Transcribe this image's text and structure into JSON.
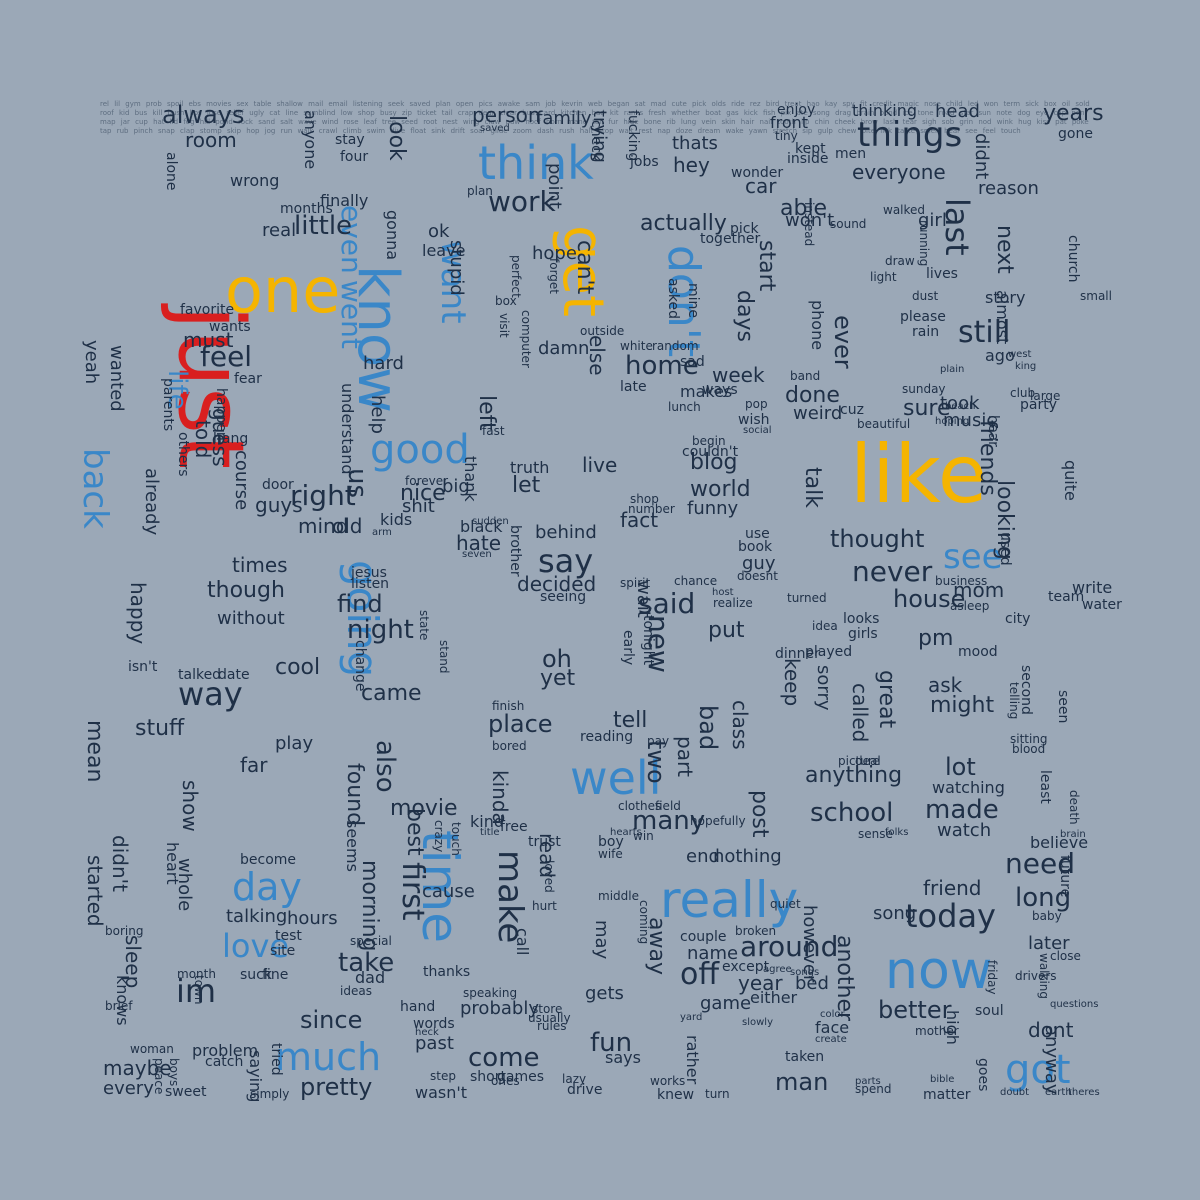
{
  "colors": {
    "background": "#9ba8b7",
    "dark": "#1f3047",
    "blue": "#3a87c8",
    "gold": "#f5b400",
    "red": "#d91f1f"
  },
  "words": {
    "like": "like",
    "just": "just",
    "one": "one",
    "know": "know",
    "get": "get",
    "think": "think",
    "dont": "don't",
    "time": "time",
    "really": "really",
    "well": "well",
    "now": "now",
    "got": "got",
    "good": "good",
    "going": "going",
    "see": "see",
    "back": "back",
    "day": "day",
    "much": "much",
    "love": "love",
    "want": "want",
    "even": "even",
    "went": "went",
    "life": "life",
    "things": "things",
    "still": "still",
    "last": "last",
    "today": "today",
    "never": "never",
    "say": "say",
    "said": "said",
    "new": "new",
    "way": "way",
    "make": "make",
    "first": "first",
    "right": "right",
    "feel": "feel",
    "little": "little",
    "work": "work",
    "home": "home",
    "thought": "thought",
    "friends": "friends",
    "looking": "looking",
    "talk": "talk",
    "also": "also",
    "around": "around",
    "off": "off",
    "need": "need",
    "long": "long",
    "better": "better",
    "school": "school",
    "anything": "anything",
    "made": "made",
    "many": "many",
    "two": "two",
    "part": "part",
    "tell": "tell",
    "place": "place",
    "kinda": "kinda",
    "take": "take",
    "since": "since",
    "pretty": "pretty",
    "come": "come",
    "fun": "fun",
    "man": "man",
    "years": "years",
    "always": "always",
    "room": "room",
    "look": "look",
    "person": "person",
    "family": "family",
    "actually": "actually",
    "everyone": "everyone",
    "next": "next",
    "ever": "ever",
    "sure": "sure",
    "house": "house",
    "night": "night",
    "find": "find",
    "came": "came",
    "movie": "movie",
    "found": "found",
    "morning": "morning",
    "best": "best",
    "hours": "hours",
    "talking": "talking",
    "im": "im",
    "maybe": "maybe",
    "every": "every",
    "problem": "problem",
    "without": "without",
    "though": "though",
    "times": "times",
    "cool": "cool",
    "stuff": "stuff",
    "mean": "mean",
    "happy": "happy",
    "already": "already",
    "yeah": "yeah",
    "wanted": "wanted",
    "must": "must",
    "guess": "guess",
    "course": "course",
    "told": "told",
    "guys": "guys",
    "mind": "mind",
    "old": "old",
    "us": "us",
    "nice": "nice",
    "hate": "hate",
    "left": "left",
    "let": "let",
    "live": "live",
    "blog": "blog",
    "world": "world",
    "funny": "funny",
    "fact": "fact",
    "behind": "behind",
    "decided": "decided",
    "oh": "oh",
    "yet": "yet",
    "week": "week",
    "start": "start",
    "days": "days",
    "done": "done",
    "weird": "weird",
    "great": "great",
    "ask": "ask",
    "might": "might",
    "called": "called",
    "bad": "bad",
    "class": "class",
    "lot": "lot",
    "post": "post",
    "watching": "watching",
    "watch": "watch",
    "friend": "friend",
    "song": "song",
    "another": "another",
    "however": "however",
    "name": "name",
    "year": "year",
    "away": "away",
    "wait": "wait",
    "put": "put",
    "keep": "keep",
    "sorry": "sorry",
    "pm": "pm",
    "mom": "mom",
    "music": "music",
    "took": "took",
    "reason": "reason",
    "didnt": "didnt",
    "car": "car",
    "able": "able",
    "wont": "won't",
    "inside": "inside",
    "hey": "hey",
    "thats": "thats",
    "cant": "can't",
    "else": "else",
    "damn": "damn",
    "trying": "trying",
    "point": "point",
    "hope": "hope",
    "stupid": "stupid",
    "play": "play",
    "far": "far",
    "show": "show",
    "sleep": "sleep",
    "started": "started",
    "didnt2": "didn't",
    "heart": "heart",
    "whole": "whole",
    "date": "date",
    "leave": "leave",
    "ok": "ok",
    "gonna": "gonna",
    "finally": "finally",
    "months": "months",
    "wrong": "wrong",
    "alone": "alone",
    "four": "four",
    "stay": "stay",
    "anyone": "anyone",
    "real": "real",
    "understand": "understand",
    "help": "help",
    "hard": "hard",
    "shit": "shit",
    "kids": "kids",
    "big": "big",
    "black": "black",
    "truth": "truth",
    "thank": "thank",
    "brother": "brother",
    "seeing": "seeing",
    "read": "read",
    "cause": "cause",
    "probably": "probably",
    "call": "call",
    "may": "may",
    "gets": "gets",
    "game": "game",
    "either": "either",
    "bed": "bed",
    "believe": "believe",
    "future": "future",
    "later": "later",
    "anyway": "anyway",
    "dont2": "dont",
    "face": "face",
    "says": "says",
    "wasnt": "wasn't",
    "past": "past",
    "words": "words",
    "short": "short",
    "games": "games",
    "rather": "rather",
    "couple": "couple",
    "except": "except",
    "nothing": "nothing",
    "end": "end",
    "phone": "phone",
    "thinking": "thinking",
    "head": "head",
    "girl": "girl",
    "lives": "lives",
    "story": "story",
    "almost": "almost",
    "ago": "ago",
    "party": "party",
    "hear": "hear",
    "used": "used",
    "quite": "quite",
    "write": "write",
    "water": "water",
    "team": "team",
    "second": "second",
    "least": "least",
    "death": "death",
    "seen": "seen",
    "church": "church",
    "small": "small",
    "gone": "gone",
    "tonight": "tonight",
    "early": "early",
    "ways": "ways",
    "wish": "wish",
    "lunch": "lunch",
    "makes": "makes",
    "sad": "sad",
    "late": "late",
    "asked": "asked",
    "mine": "mine",
    "together": "together",
    "pick": "pick",
    "plan": "plan",
    "visit": "visit",
    "computer": "computer",
    "outside": "outside",
    "white": "white",
    "random": "random",
    "sitting": "sitting",
    "blood": "blood",
    "picture": "picture",
    "deal": "deal",
    "hurt": "hurt",
    "loved": "loved",
    "trust": "trust",
    "free": "free",
    "speaking": "speaking",
    "rules": "rules",
    "store": "store",
    "usually": "usually",
    "drive": "drive",
    "lazy": "lazy",
    "bored": "bored",
    "reading": "reading",
    "pay": "pay",
    "clothes": "clothes",
    "field": "field",
    "spirit": "spirit",
    "chance": "chance",
    "guy": "guy",
    "book": "book",
    "doesnt": "doesnt",
    "use": "use",
    "business": "business",
    "asleep": "asleep",
    "city": "city",
    "mood": "mood",
    "telling": "telling",
    "fine": "fine",
    "suck": "suck",
    "thanks": "thanks",
    "special": "special",
    "ideas": "ideas",
    "boring": "boring",
    "knows": "knows",
    "brief": "brief",
    "woman": "woman",
    "peace": "peace",
    "boys": "boys",
    "sweet": "sweet",
    "catch": "catch",
    "simply": "simply",
    "saying": "saying",
    "tried": "tried",
    "hand": "hand",
    "seems": "seems",
    "dad": "dad",
    "month": "month",
    "town": "town",
    "site": "site",
    "test": "test",
    "favorite": "favorite",
    "wants": "wants",
    "parents": "parents",
    "happen": "happen",
    "fear": "fear",
    "others": "others",
    "hang": "hang",
    "door": "door",
    "jesus": "jesus",
    "listen": "listen",
    "change": "change",
    "state": "state",
    "stand": "stand",
    "sound": "sound",
    "walked": "walked",
    "running": "running",
    "wonder": "wonder",
    "front": "front",
    "enjoy": "enjoy",
    "men": "men",
    "kept": "kept",
    "tiny": "tiny",
    "box": "box",
    "perfect": "perfect",
    "forget": "forget",
    "turned": "turned",
    "idea": "idea",
    "dinner": "dinner",
    "played": "played",
    "girls": "girls",
    "looks": "looks",
    "isnt": "isn't",
    "talked": "talked",
    "finish": "finish",
    "become": "become",
    "soul": "soul",
    "high": "high",
    "spend": "spend",
    "matter": "matter",
    "works": "works",
    "knew": "knew",
    "turn": "turn",
    "taken": "taken",
    "parts": "parts",
    "bible": "bible",
    "goes": "goes",
    "doubt": "doubt",
    "earth": "earth",
    "theres": "theres",
    "questions": "questions",
    "mother": "mother",
    "create": "create",
    "color": "color",
    "slowly": "slowly",
    "songs": "songs",
    "agree": "agree",
    "coming": "coming",
    "middle": "middle",
    "kind": "kind",
    "wife": "wife",
    "boy": "boy",
    "win": "win",
    "hearts": "hearts",
    "hopefully": "hopefully",
    "brain": "brain",
    "baby": "baby",
    "walking": "walking",
    "close": "close",
    "drivers": "drivers",
    "friday": "friday",
    "quiet": "quiet",
    "broken": "broken",
    "saved": "saved",
    "ones": "ones",
    "step": "step",
    "fucking": "fucking",
    "beautiful": "beautiful",
    "fast": "fast",
    "arm": "arm",
    "forever": "forever",
    "sunday": "sunday",
    "hoping": "hoping",
    "plain": "plain",
    "beach": "beach",
    "social": "social",
    "pop": "pop",
    "band": "band",
    "light": "light",
    "draw": "draw",
    "please": "please",
    "rain": "rain",
    "dust": "dust",
    "west": "west",
    "king": "king",
    "large": "large",
    "club": "club",
    "instead": "instead",
    "check": "check",
    "begin": "begin",
    "couldnt": "couldn't",
    "shop": "shop",
    "number": "number",
    "sudden": "sudden",
    "seven": "seven",
    "crazy": "crazy",
    "touch": "touch",
    "title": "title",
    "heck": "heck",
    "jobs": "jobs",
    "yard": "yard",
    "host": "host",
    "realize": "realize",
    "sense": "sense",
    "folks": "folks",
    "cuz": "cuz",
    "words_filler": "rel lil gym prob spoil ebs movies sex table shallow mail email listening seek saved plan open pics awake sam job kevrin web began sat mad cute pick olds ride rez bird treat hao kay spy fit credit magic nose child led won term sick box oil sold roof kid bus kill bush lips lose relief ugly cat line sumblind low shop busy zip ticket tail crap dear clear bus card kitchen bad kit ranks fresh whether boat gas kick fish pix ate song drag brain bond ice tone road star sun note dog eye cap pen map jar cup hat lid fog hill pond rock sand salt wave wind rose leaf tree seed root nest wing claw paw hoof horn mane tail fur hide bone rib lung vein skin hair nail tooth lip chin cheek brow lash tear sigh sob grin nod wink hug kiss pat poke tap rub pinch snap clap stomp skip hop jog run walk crawl climb swim dive float sink drift soar glide zoom dash rush halt stop wait rest nap doze dream wake yawn stretch sip gulp chew bite lick taste smell hear see feel touch"
  }
}
